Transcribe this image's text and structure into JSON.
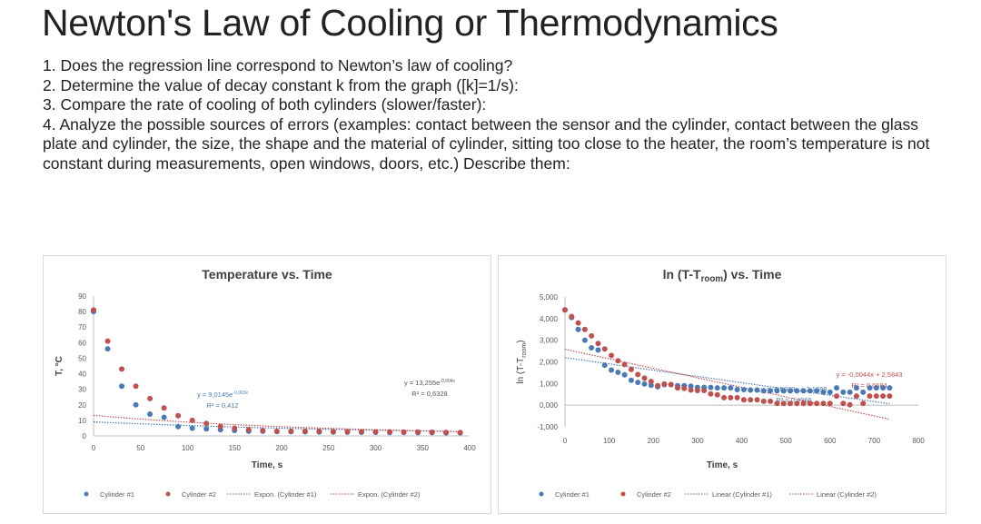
{
  "title": "Newton's Law of Cooling or Thermodynamics",
  "questions": [
    "1. Does the regression line correspond to Newton’s law of cooling?",
    "2. Determine the value of decay constant k from the graph ([k]=1/s):",
    "3. Compare the rate of cooling of both cylinders (slower/faster):",
    "4. Analyze the possible sources of errors (examples: contact between the sensor and the cylinder, contact between the glass plate and cylinder, the size, the shape and the material of cylinder, sitting too close to the heater, the room’s temperature is not constant during measurements, open windows, doors, etc.) Describe them:"
  ],
  "colors": {
    "cyl1": "#4a7ab5",
    "cyl2": "#c0504d"
  },
  "chart_data": [
    {
      "type": "scatter",
      "title": "Temperature vs. Time",
      "xlabel": "Time, s",
      "ylabel": "T, °C",
      "xlim": [
        0,
        400
      ],
      "ylim": [
        0,
        90
      ],
      "xticks": [
        "0",
        "50",
        "100",
        "150",
        "200",
        "250",
        "300",
        "350",
        "400"
      ],
      "yticks": [
        "0",
        "10",
        "20",
        "30",
        "40",
        "50",
        "60",
        "70",
        "80",
        "90"
      ],
      "x": [
        0,
        15,
        30,
        45,
        60,
        75,
        90,
        105,
        120,
        135,
        150,
        165,
        180,
        195,
        210,
        225,
        240,
        255,
        270,
        285,
        300,
        315,
        330,
        345,
        360,
        375,
        390
      ],
      "series": [
        {
          "name": "Cylinder #1",
          "values": [
            80,
            56,
            32,
            20,
            14,
            12,
            6,
            5,
            4.5,
            4,
            3.5,
            3,
            3,
            2.8,
            2.7,
            2.6,
            2.5,
            2.5,
            2.4,
            2.3,
            2.3,
            2.2,
            2.2,
            2.1,
            2.1,
            2,
            2
          ]
        },
        {
          "name": "Cylinder #2",
          "values": [
            81,
            61,
            43,
            32,
            24,
            18,
            13,
            10,
            8,
            6,
            5,
            4,
            3.5,
            3,
            3,
            3,
            3,
            2.8,
            2.8,
            2.7,
            2.6,
            2.6,
            2.5,
            2.5,
            2.4,
            2.3,
            2.2
          ]
        }
      ],
      "trendlines": [
        {
          "name": "Expon. (Cylinder #1)",
          "type": "exp",
          "a": 9.0145,
          "b": -0.003,
          "equation": "y = 9,0145e",
          "exponent": "-0,003x",
          "r2": "R² = 0,412"
        },
        {
          "name": "Expon. (Cylinder #2)",
          "type": "exp",
          "a": 13.255,
          "b": -0.004,
          "equation": "y = 13,255e",
          "exponent": "-0,004x",
          "r2": "R² = 0,6328"
        }
      ],
      "legend": [
        "Cylinder #1",
        "Cylinder #2",
        "Expon. (Cylinder #1)",
        "Expon. (Cylinder #2)"
      ],
      "legend_position": "bottom"
    },
    {
      "type": "scatter",
      "title": "ln (T-T",
      "title_sub": "room",
      "title_end": ") vs. Time",
      "xlabel": "Time, s",
      "ylabel": "ln (T-T",
      "ylabel_sub": "room",
      "ylabel_end": ")",
      "xlim": [
        0,
        800
      ],
      "ylim": [
        -1,
        5
      ],
      "xticks": [
        "0",
        "100",
        "200",
        "300",
        "400",
        "500",
        "600",
        "700",
        "800"
      ],
      "yticks": [
        "-1,000",
        "0,000",
        "1,000",
        "2,000",
        "3,000",
        "4,000",
        "5,000"
      ],
      "x": [
        0,
        15,
        30,
        45,
        60,
        75,
        90,
        105,
        120,
        135,
        150,
        165,
        180,
        195,
        210,
        225,
        240,
        255,
        270,
        285,
        300,
        315,
        330,
        345,
        360,
        375,
        390,
        405,
        420,
        435,
        450,
        465,
        480,
        495,
        510,
        525,
        540,
        555,
        570,
        585,
        600,
        615,
        630,
        645,
        660,
        675,
        690,
        705,
        720,
        735
      ],
      "series": [
        {
          "name": "Cylinder #1",
          "values": [
            4.4,
            4.05,
            3.5,
            3.0,
            2.65,
            2.55,
            1.85,
            1.62,
            1.52,
            1.4,
            1.15,
            1.05,
            0.98,
            0.92,
            0.85,
            0.95,
            0.95,
            0.9,
            0.9,
            0.88,
            0.82,
            0.82,
            0.82,
            0.8,
            0.8,
            0.8,
            0.72,
            0.72,
            0.7,
            0.7,
            0.66,
            0.66,
            0.66,
            0.66,
            0.66,
            0.66,
            0.66,
            0.66,
            0.66,
            0.6,
            0.6,
            0.8,
            0.6,
            0.6,
            0.8,
            0.6,
            0.8,
            0.8,
            0.8,
            0.8
          ]
        },
        {
          "name": "Cylinder #2",
          "values": [
            4.4,
            4.1,
            3.8,
            3.5,
            3.2,
            2.85,
            2.6,
            2.3,
            2.05,
            1.88,
            1.65,
            1.42,
            1.25,
            1.1,
            0.9,
            0.98,
            0.95,
            0.8,
            0.78,
            0.7,
            0.68,
            0.68,
            0.52,
            0.48,
            0.35,
            0.35,
            0.35,
            0.25,
            0.25,
            0.25,
            0.18,
            0.18,
            0.08,
            0.08,
            0.08,
            0.08,
            0.08,
            0.08,
            0.08,
            0.08,
            0.08,
            0.42,
            0.08,
            0.02,
            0.42,
            0.08,
            0.42,
            0.42,
            0.42,
            0.42
          ]
        }
      ],
      "trendlines": [
        {
          "name": "Linear (Cylinder #1)",
          "type": "linear",
          "a": 2.1988,
          "b": -0.0029,
          "equation": "y = -0,0029x + 2,1988",
          "r2": "R² = 0,4966"
        },
        {
          "name": "Linear (Cylinder #2)",
          "type": "linear",
          "a": 2.5843,
          "b": -0.0044,
          "equation": "y = -0,0044x + 2,5843",
          "r2": "R² = 0,6684"
        }
      ],
      "legend": [
        "Cylinder #1",
        "Cylinder #2",
        "Linear (Cylinder #1)",
        "Linear (Cylinder #2)"
      ],
      "legend_position": "bottom"
    }
  ]
}
